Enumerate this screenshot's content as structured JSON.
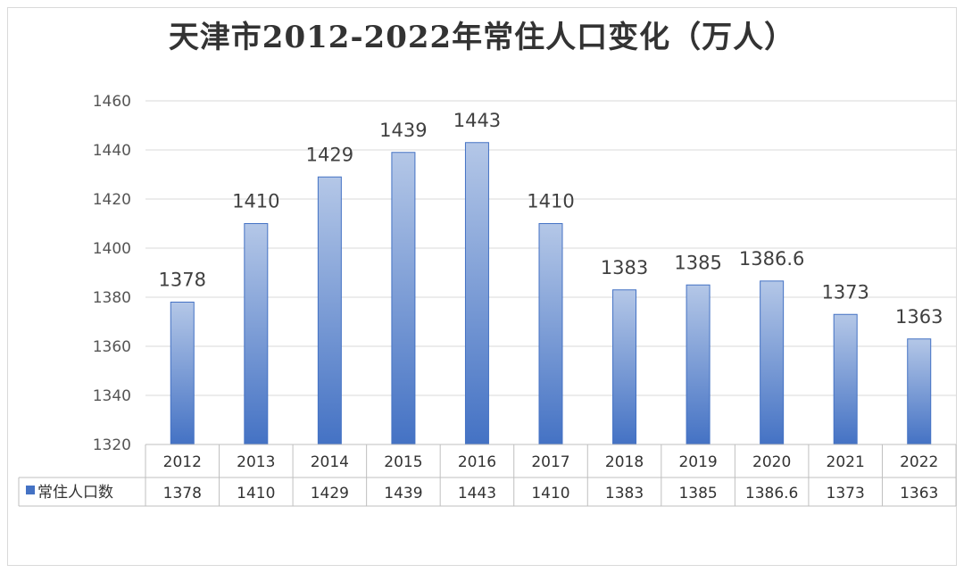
{
  "chart_data": {
    "type": "bar",
    "title": "天津市2012-2022年常住人口变化（万人）",
    "categories": [
      "2012",
      "2013",
      "2014",
      "2015",
      "2016",
      "2017",
      "2018",
      "2019",
      "2020",
      "2021",
      "2022"
    ],
    "series": [
      {
        "name": "常住人口数",
        "values": [
          1378,
          1410,
          1429,
          1439,
          1443,
          1410,
          1383,
          1385,
          1386.6,
          1373,
          1363
        ],
        "data_labels": [
          "1378",
          "1410",
          "1429",
          "1439",
          "1443",
          "1410",
          "1383",
          "1385",
          "1386.6",
          "1373",
          "1363"
        ],
        "color_top": "#b4c7e7",
        "color_bottom": "#4472c4",
        "border": "#4472c4"
      }
    ],
    "ylim": [
      1320,
      1460
    ],
    "yticks": [
      1320,
      1340,
      1360,
      1380,
      1400,
      1420,
      1440,
      1460
    ],
    "grid": true,
    "legend": "data-table",
    "grid_color": "#d9d9d9"
  }
}
